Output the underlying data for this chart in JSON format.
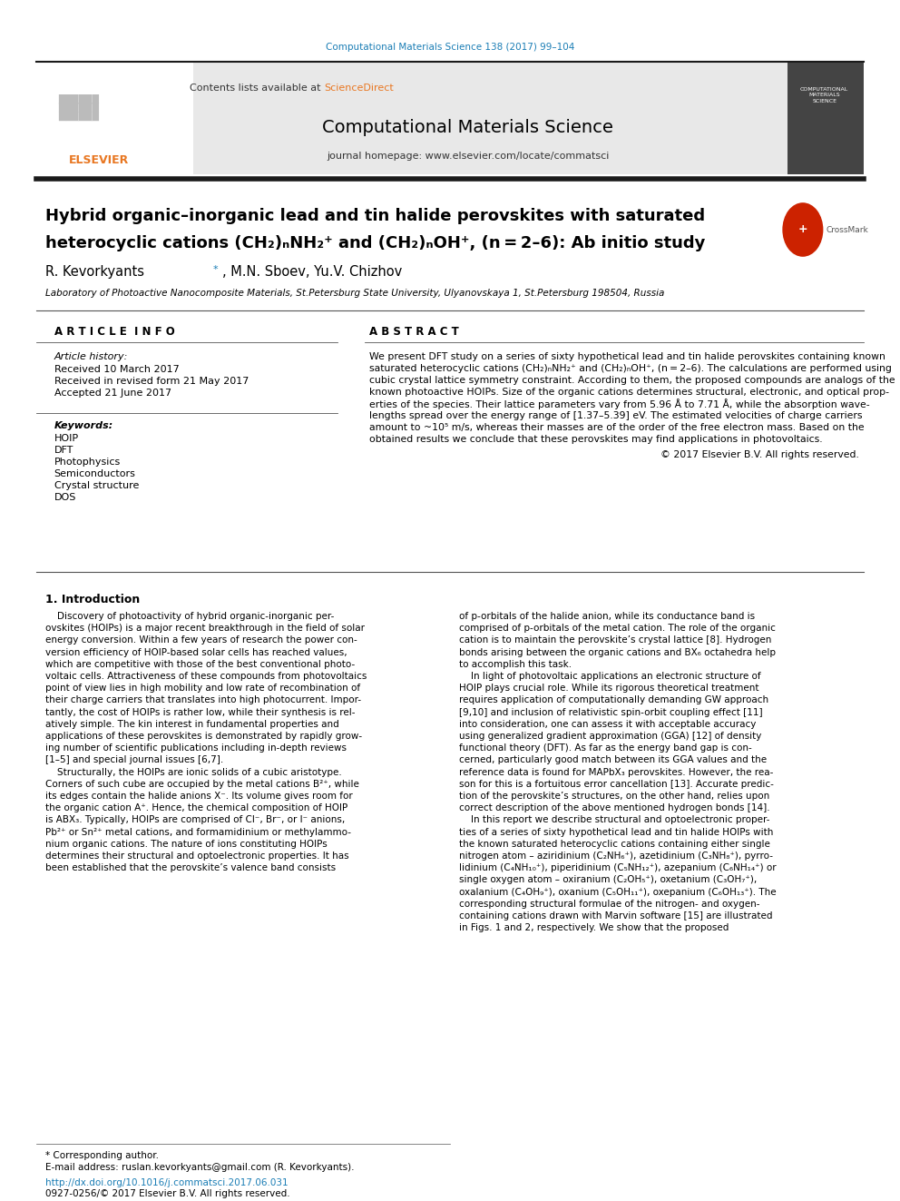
{
  "page_width": 9.92,
  "page_height": 13.23,
  "bg_color": "#ffffff",
  "journal_ref": "Computational Materials Science 138 (2017) 99–104",
  "journal_ref_color": "#1a7db5",
  "header_bg": "#e8e8e8",
  "contents_text": "Contents lists available at ",
  "sciencedirect_text": "ScienceDirect",
  "sciencedirect_color": "#e87722",
  "journal_name": "Computational Materials Science",
  "journal_homepage": "journal homepage: www.elsevier.com/locate/commatsci",
  "elsevier_color": "#e87722",
  "elsevier_text": "ELSEVIER",
  "thick_rule_color": "#1a1a1a",
  "thin_rule_color": "#555555",
  "title_line1": "Hybrid organic–inorganic lead and tin halide perovskites with saturated",
  "title_line2": "heterocyclic cations (CH₂)ₙNH₂⁺ and (CH₂)ₙOH⁺, (n = 2–6): Ab initio study",
  "authors": "R. Kevorkyants *, M.N. Sboev, Yu.V. Chizhov",
  "affiliation": "Laboratory of Photoactive Nanocomposite Materials, St.Petersburg State University, Ulyanovskaya 1, St.Petersburg 198504, Russia",
  "article_info_title": "A R T I C L E  I N F O",
  "abstract_title": "A B S T R A C T",
  "article_history_label": "Article history:",
  "received": "Received 10 March 2017",
  "revised": "Received in revised form 21 May 2017",
  "accepted": "Accepted 21 June 2017",
  "keywords_label": "Keywords:",
  "keywords": [
    "HOIP",
    "DFT",
    "Photophysics",
    "Semiconductors",
    "Crystal structure",
    "DOS"
  ],
  "copyright": "© 2017 Elsevier B.V. All rights reserved.",
  "intro_title": "1. Introduction",
  "footer_line1": "* Corresponding author.",
  "footer_line2": "E-mail address: ruslan.kevorkyants@gmail.com (R. Kevorkyants).",
  "doi_text": "http://dx.doi.org/10.1016/j.commatsci.2017.06.031",
  "doi_color": "#1a7db5",
  "issn_text": "0927-0256/© 2017 Elsevier B.V. All rights reserved.",
  "separator_color": "#555555",
  "abstract_lines": [
    "We present DFT study on a series of sixty hypothetical lead and tin halide perovskites containing known",
    "saturated heterocyclic cations (CH₂)ₙNH₂⁺ and (CH₂)ₙOH⁺, (n = 2–6). The calculations are performed using",
    "cubic crystal lattice symmetry constraint. According to them, the proposed compounds are analogs of the",
    "known photoactive HOIPs. Size of the organic cations determines structural, electronic, and optical prop-",
    "erties of the species. Their lattice parameters vary from 5.96 Å to 7.71 Å, while the absorption wave-",
    "lengths spread over the energy range of [1.37–5.39] eV. The estimated velocities of charge carriers",
    "amount to ~10⁵ m/s, whereas their masses are of the order of the free electron mass. Based on the",
    "obtained results we conclude that these perovskites may find applications in photovoltaics."
  ],
  "col1_lines": [
    "    Discovery of photoactivity of hybrid organic-inorganic per-",
    "ovskites (HOIPs) is a major recent breakthrough in the field of solar",
    "energy conversion. Within a few years of research the power con-",
    "version efficiency of HOIP-based solar cells has reached values,",
    "which are competitive with those of the best conventional photo-",
    "voltaic cells. Attractiveness of these compounds from photovoltaics",
    "point of view lies in high mobility and low rate of recombination of",
    "their charge carriers that translates into high photocurrent. Impor-",
    "tantly, the cost of HOIPs is rather low, while their synthesis is rel-",
    "atively simple. The kin interest in fundamental properties and",
    "applications of these perovskites is demonstrated by rapidly grow-",
    "ing number of scientific publications including in-depth reviews",
    "[1–5] and special journal issues [6,7].",
    "    Structurally, the HOIPs are ionic solids of a cubic aristotype.",
    "Corners of such cube are occupied by the metal cations B²⁺, while",
    "its edges contain the halide anions X⁻. Its volume gives room for",
    "the organic cation A⁺. Hence, the chemical composition of HOIP",
    "is ABX₃. Typically, HOIPs are comprised of Cl⁻, Br⁻, or I⁻ anions,",
    "Pb²⁺ or Sn²⁺ metal cations, and formamidinium or methylammo-",
    "nium organic cations. The nature of ions constituting HOIPs",
    "determines their structural and optoelectronic properties. It has",
    "been established that the perovskite’s valence band consists"
  ],
  "col2_lines": [
    "of p-orbitals of the halide anion, while its conductance band is",
    "comprised of p-orbitals of the metal cation. The role of the organic",
    "cation is to maintain the perovskite’s crystal lattice [8]. Hydrogen",
    "bonds arising between the organic cations and BX₆ octahedra help",
    "to accomplish this task.",
    "    In light of photovoltaic applications an electronic structure of",
    "HOIP plays crucial role. While its rigorous theoretical treatment",
    "requires application of computationally demanding GW approach",
    "[9,10] and inclusion of relativistic spin-orbit coupling effect [11]",
    "into consideration, one can assess it with acceptable accuracy",
    "using generalized gradient approximation (GGA) [12] of density",
    "functional theory (DFT). As far as the energy band gap is con-",
    "cerned, particularly good match between its GGA values and the",
    "reference data is found for MAPbX₃ perovskites. However, the rea-",
    "son for this is a fortuitous error cancellation [13]. Accurate predic-",
    "tion of the perovskite’s structures, on the other hand, relies upon",
    "correct description of the above mentioned hydrogen bonds [14].",
    "    In this report we describe structural and optoelectronic proper-",
    "ties of a series of sixty hypothetical lead and tin halide HOIPs with",
    "the known saturated heterocyclic cations containing either single",
    "nitrogen atom – aziridinium (C₂NH₆⁺), azetidinium (C₃NH₈⁺), pyrro-",
    "lidinium (C₄NH₁₀⁺), piperidinium (C₅NH₁₂⁺), azepanium (C₆NH₁₄⁺) or",
    "single oxygen atom – oxiranium (C₂OH₅⁺), oxetanium (C₃OH₇⁺),",
    "oxalanium (C₄OH₉⁺), oxanium (C₅OH₁₁⁺), oxepanium (C₆OH₁₃⁺). The",
    "corresponding structural formulae of the nitrogen- and oxygen-",
    "containing cations drawn with Marvin software [15] are illustrated",
    "in Figs. 1 and 2, respectively. We show that the proposed"
  ]
}
